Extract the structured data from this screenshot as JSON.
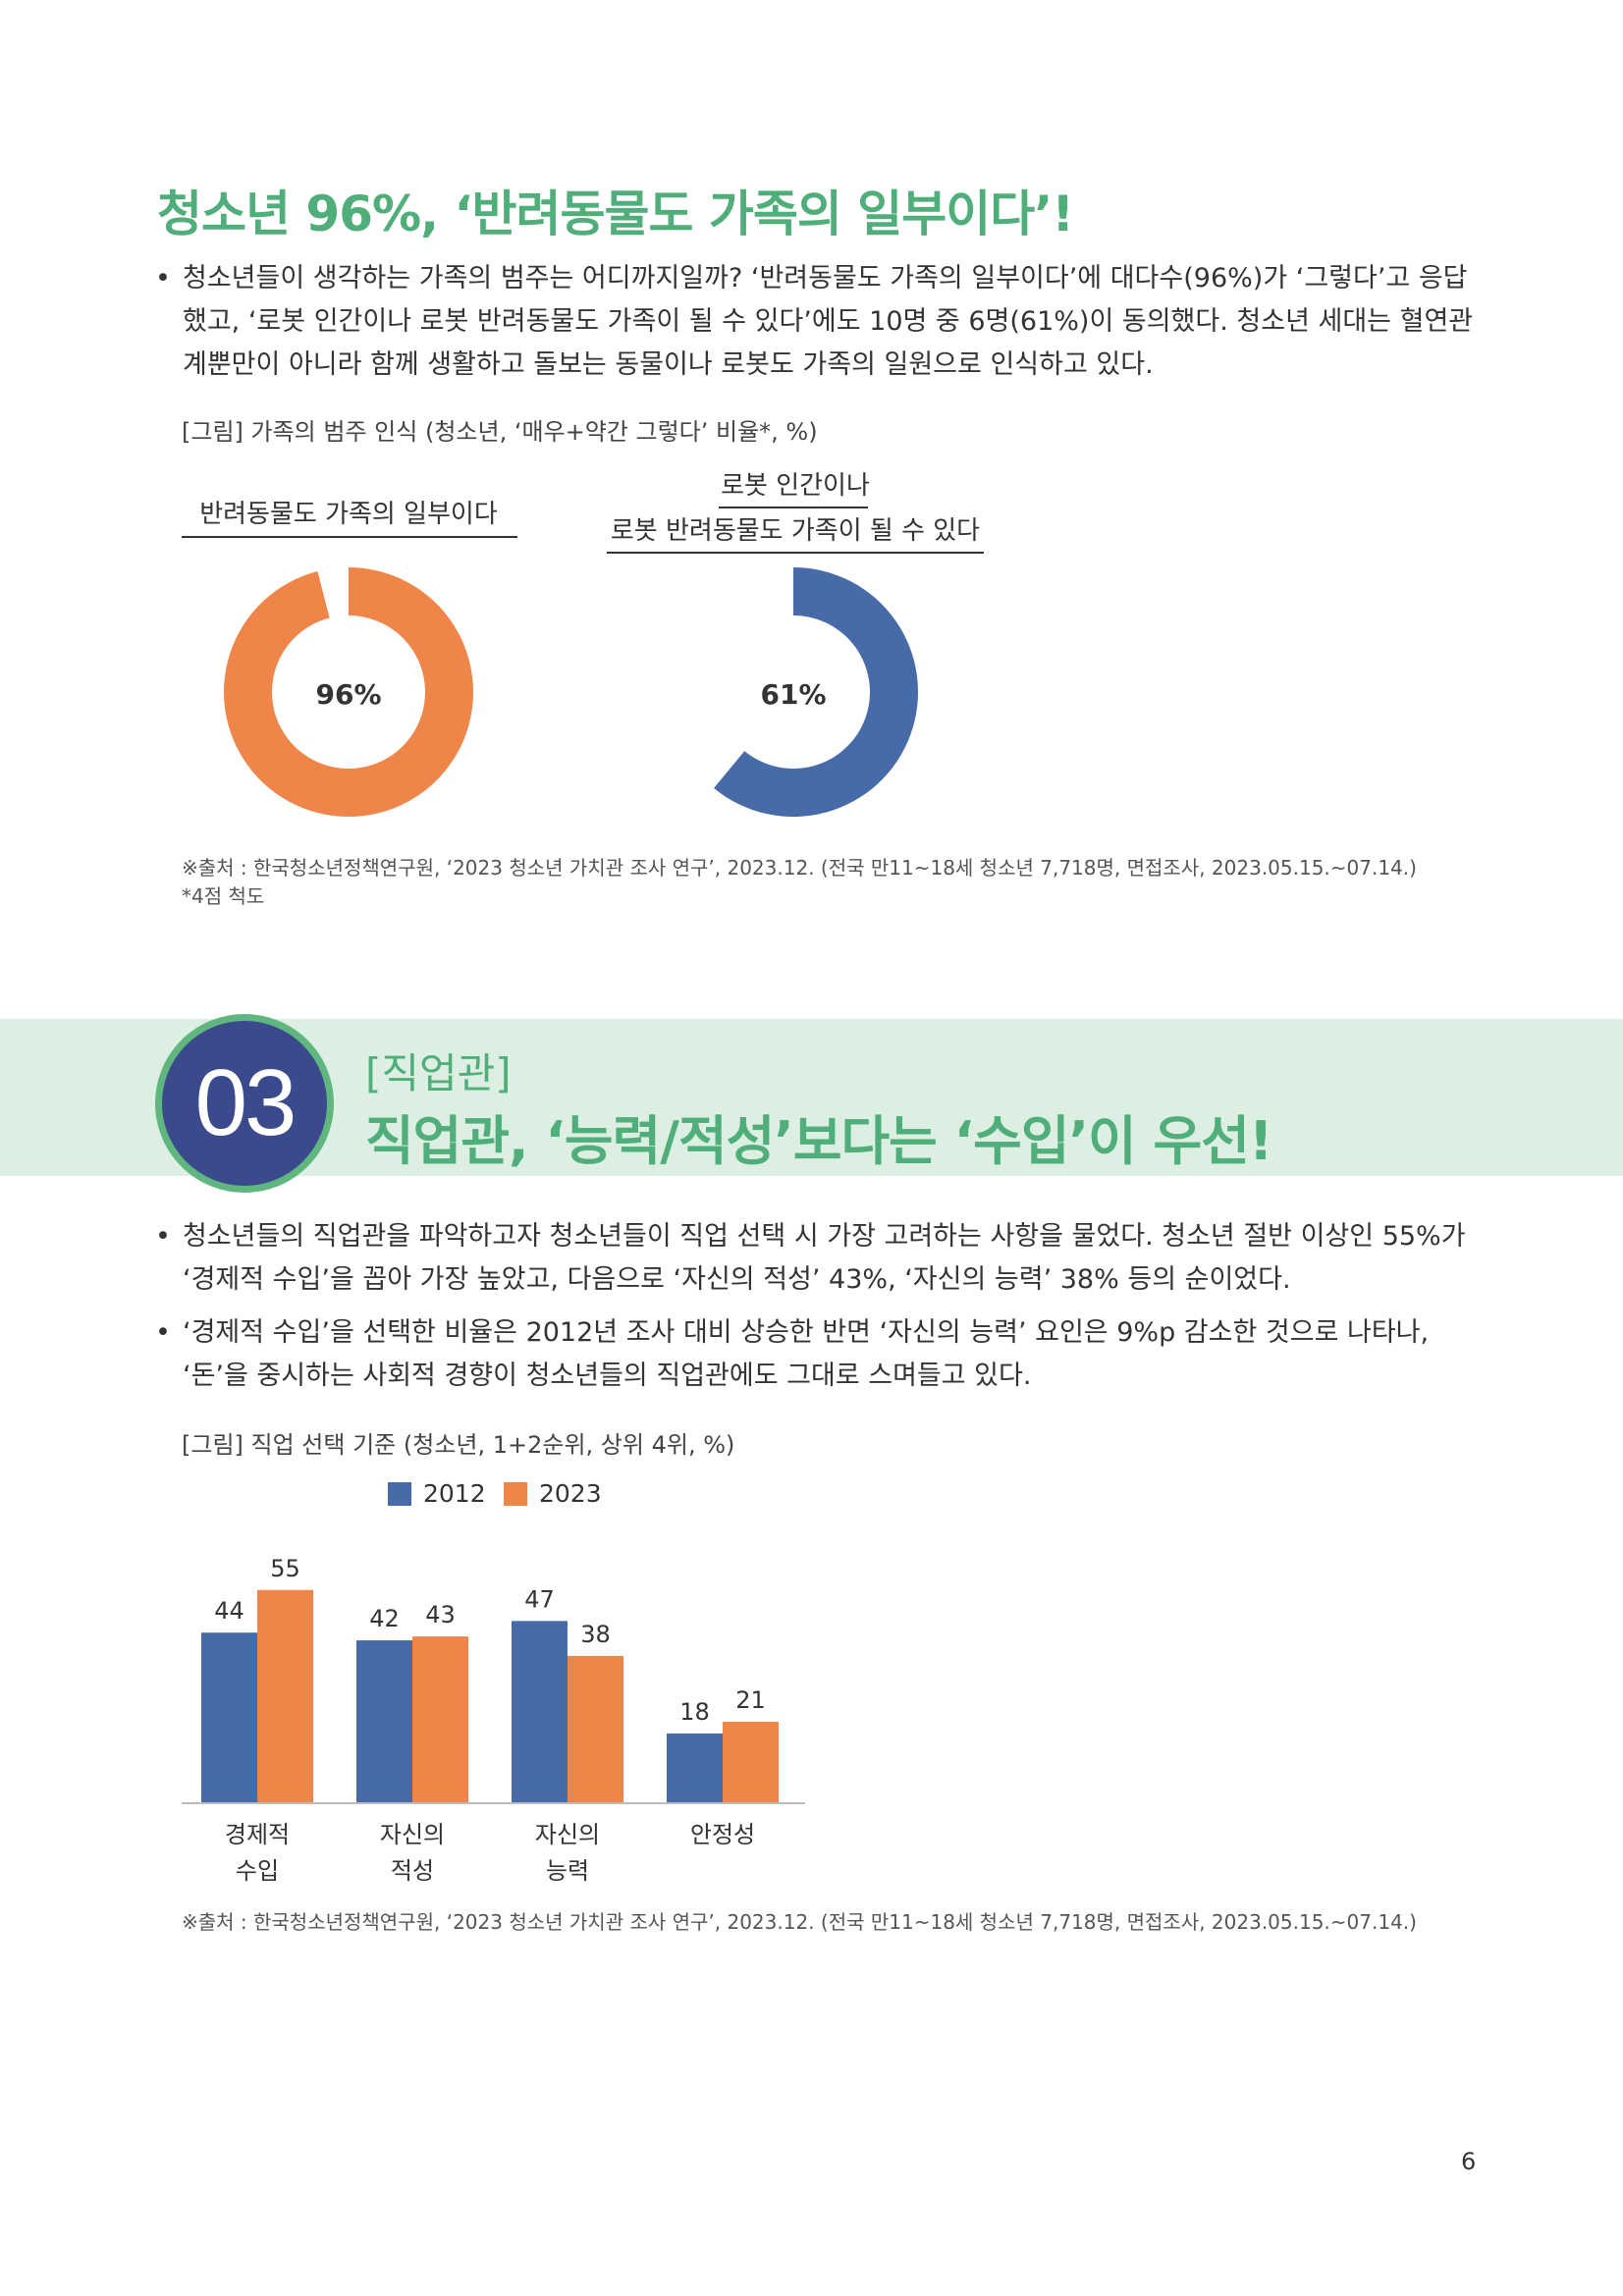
{
  "section1": {
    "title": "청소년 96%, ‘반려동물도 가족의 일부이다’!",
    "bullet": "청소년들이 생각하는 가족의 범주는 어디까지일까? ‘반려동물도 가족의 일부이다’에 대다수(96%)가 ‘그렇다’고 응답했고, ‘로봇 인간이나 로봇 반려동물도 가족이 될 수 있다’에도 10명 중 6명(61%)이 동의했다. 청소년 세대는 혈연관계뿐만이 아니라 함께 생활하고 돌보는 동물이나 로봇도 가족의 일원으로 인식하고 있다.",
    "figure_caption": "[그림] 가족의 범주 인식 (청소년, ‘매우+약간 그렇다’ 비율*, %)",
    "source": "※출처 : 한국청소년정책연구원, ‘2023 청소년 가치관 조사 연구’, 2023.12. (전국 만11~18세 청소년 7,718명, 면접조사, 2023.05.15.~07.14.)",
    "footnote": "*4점 척도"
  },
  "chart_data": [
    {
      "type": "pie",
      "title": "반려동물도 가족의 일부이다",
      "values": [
        96
      ],
      "label": "96%",
      "color": "#f0854a"
    },
    {
      "type": "pie",
      "title_line1": "로봇 인간이나",
      "title_line2": "로봇 반려동물도 가족이 될 수 있다",
      "values": [
        61
      ],
      "label": "61%",
      "color": "#476aa8"
    },
    {
      "type": "bar",
      "title": "[그림] 직업 선택 기준 (청소년, 1+2순위, 상위 4위, %)",
      "categories": [
        [
          "경제적",
          "수입"
        ],
        [
          "자신의",
          "적성"
        ],
        [
          "자신의",
          "능력"
        ],
        [
          "안정성"
        ]
      ],
      "series": [
        {
          "name": "2012",
          "values": [
            44,
            42,
            47,
            18
          ],
          "color": "#476aa8"
        },
        {
          "name": "2023",
          "values": [
            55,
            43,
            38,
            21
          ],
          "color": "#f0854a"
        }
      ],
      "ylim": [
        0,
        60
      ],
      "legend": "top"
    }
  ],
  "section3": {
    "number": "03",
    "subtitle": "[직업관]",
    "title": "직업관, ‘능력/적성’보다는 ‘수입’이 우선!",
    "bullets": [
      "청소년들의 직업관을 파악하고자 청소년들이 직업 선택 시 가장 고려하는 사항을 물었다. 청소년 절반 이상인 55%가 ‘경제적 수입’을 꼽아 가장 높았고, 다음으로 ‘자신의 적성’ 43%, ‘자신의 능력’ 38% 등의 순이었다.",
      "‘경제적 수입’을 선택한 비율은 2012년 조사 대비 상승한 반면 ‘자신의 능력’ 요인은 9%p 감소한 것으로 나타나, ‘돈’을 중시하는 사회적 경향이 청소년들의 직업관에도 그대로 스며들고 있다."
    ],
    "source": "※출처 : 한국청소년정책연구원, ‘2023 청소년 가치관 조사 연구’, 2023.12. (전국 만11~18세 청소년 7,718명, 면접조사, 2023.05.15.~07.14.)"
  },
  "page_number": "6",
  "bullet_glyph": "•"
}
